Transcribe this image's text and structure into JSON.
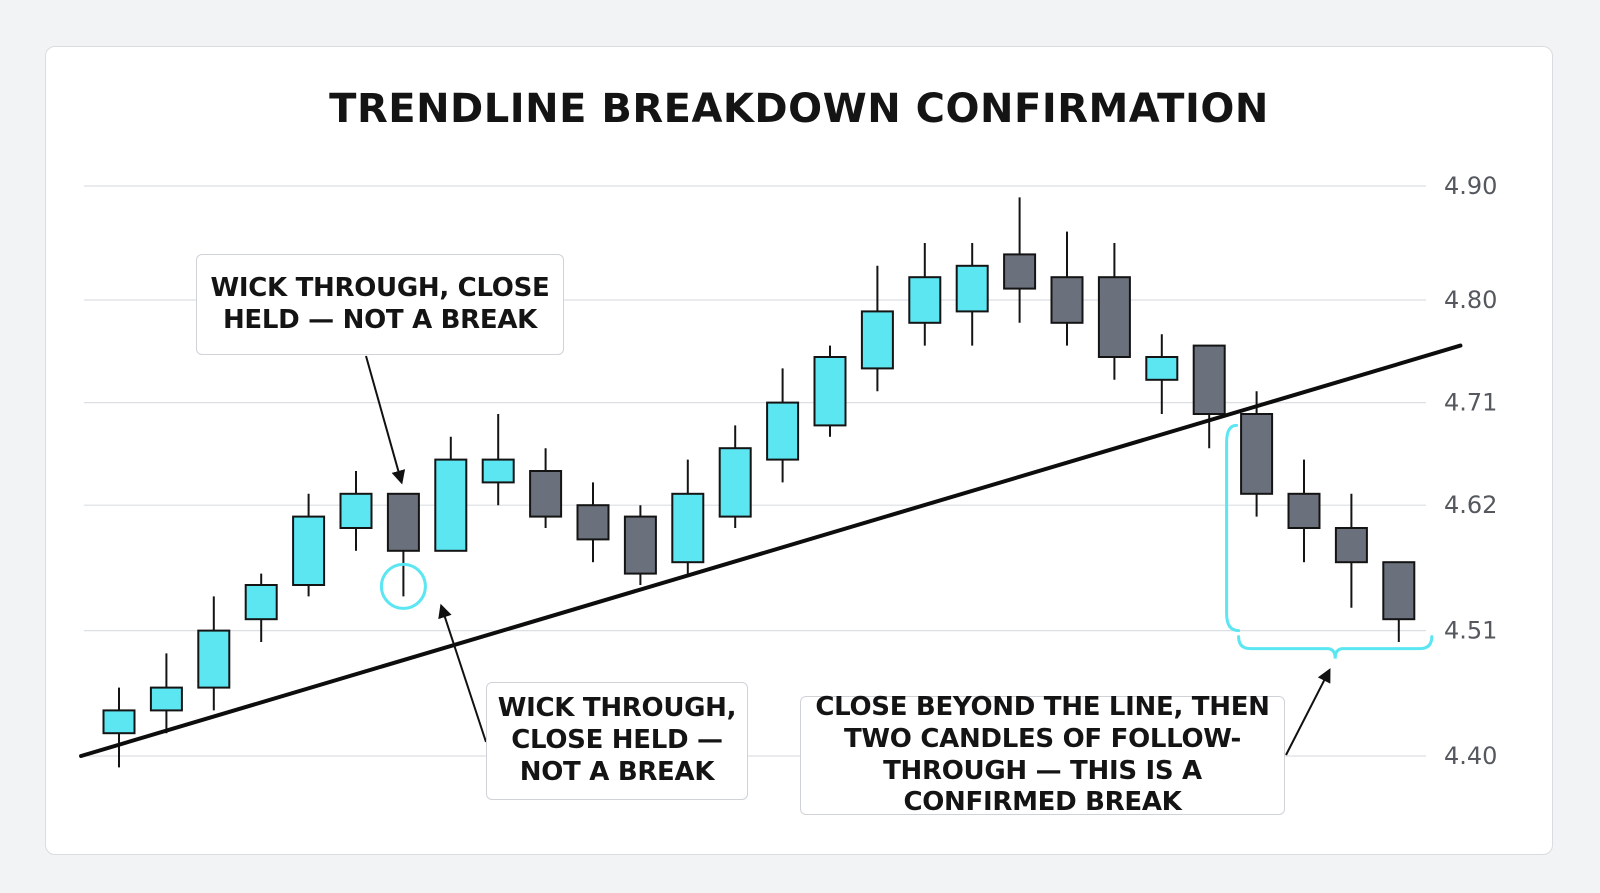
{
  "chart_data": {
    "type": "candlestick",
    "title": "TRENDLINE BREAKDOWN CONFIRMATION",
    "ylim": [
      4.4,
      4.9
    ],
    "y_ticks": [
      "4.90",
      "4.80",
      "4.71",
      "4.62",
      "4.51",
      "4.40"
    ],
    "grid": true,
    "colors": {
      "up": "#5ce6f2",
      "down": "#6b717c",
      "outline": "#141414",
      "accent": "#5ce6f2",
      "grid": "#dcdfe3"
    },
    "candles": [
      {
        "open": 4.42,
        "high": 4.46,
        "low": 4.39,
        "close": 4.44
      },
      {
        "open": 4.44,
        "high": 4.49,
        "low": 4.42,
        "close": 4.46
      },
      {
        "open": 4.46,
        "high": 4.54,
        "low": 4.44,
        "close": 4.51
      },
      {
        "open": 4.52,
        "high": 4.56,
        "low": 4.5,
        "close": 4.55
      },
      {
        "open": 4.55,
        "high": 4.63,
        "low": 4.54,
        "close": 4.61
      },
      {
        "open": 4.6,
        "high": 4.65,
        "low": 4.58,
        "close": 4.63
      },
      {
        "open": 4.63,
        "high": 4.63,
        "low": 4.54,
        "close": 4.58
      },
      {
        "open": 4.58,
        "high": 4.68,
        "low": 4.58,
        "close": 4.66
      },
      {
        "open": 4.64,
        "high": 4.7,
        "low": 4.62,
        "close": 4.66
      },
      {
        "open": 4.65,
        "high": 4.67,
        "low": 4.6,
        "close": 4.61
      },
      {
        "open": 4.62,
        "high": 4.64,
        "low": 4.57,
        "close": 4.59
      },
      {
        "open": 4.61,
        "high": 4.62,
        "low": 4.55,
        "close": 4.56
      },
      {
        "open": 4.57,
        "high": 4.66,
        "low": 4.56,
        "close": 4.63
      },
      {
        "open": 4.61,
        "high": 4.69,
        "low": 4.6,
        "close": 4.67
      },
      {
        "open": 4.66,
        "high": 4.74,
        "low": 4.64,
        "close": 4.71
      },
      {
        "open": 4.69,
        "high": 4.76,
        "low": 4.68,
        "close": 4.75
      },
      {
        "open": 4.74,
        "high": 4.83,
        "low": 4.72,
        "close": 4.79
      },
      {
        "open": 4.78,
        "high": 4.85,
        "low": 4.76,
        "close": 4.82
      },
      {
        "open": 4.79,
        "high": 4.85,
        "low": 4.76,
        "close": 4.83
      },
      {
        "open": 4.84,
        "high": 4.89,
        "low": 4.78,
        "close": 4.81
      },
      {
        "open": 4.82,
        "high": 4.86,
        "low": 4.76,
        "close": 4.78
      },
      {
        "open": 4.82,
        "high": 4.85,
        "low": 4.73,
        "close": 4.75
      },
      {
        "open": 4.73,
        "high": 4.77,
        "low": 4.7,
        "close": 4.75
      },
      {
        "open": 4.76,
        "high": 4.76,
        "low": 4.67,
        "close": 4.7
      },
      {
        "open": 4.7,
        "high": 4.72,
        "low": 4.61,
        "close": 4.63
      },
      {
        "open": 4.63,
        "high": 4.66,
        "low": 4.57,
        "close": 4.6
      },
      {
        "open": 4.6,
        "high": 4.63,
        "low": 4.53,
        "close": 4.57
      },
      {
        "open": 4.57,
        "high": 4.57,
        "low": 4.5,
        "close": 4.52
      }
    ],
    "trendline": {
      "start": {
        "candle": -0.8,
        "value": 4.4
      },
      "end": {
        "candle": 28.3,
        "value": 4.76
      }
    },
    "annotations": [
      {
        "id": "wick-top",
        "text": "WICK THROUGH, CLOSE HELD — NOT A BREAK",
        "candle": 6
      },
      {
        "id": "wick-bottom",
        "text": "WICK THROUGH, CLOSE HELD — NOT A BREAK",
        "candle": 6
      },
      {
        "id": "confirmed",
        "text": "CLOSE BEYOND THE LINE, THEN TWO CANDLES OF FOLLOW-THROUGH — THIS IS A CONFIRMED BREAK",
        "candles": [
          24,
          27
        ]
      }
    ]
  }
}
